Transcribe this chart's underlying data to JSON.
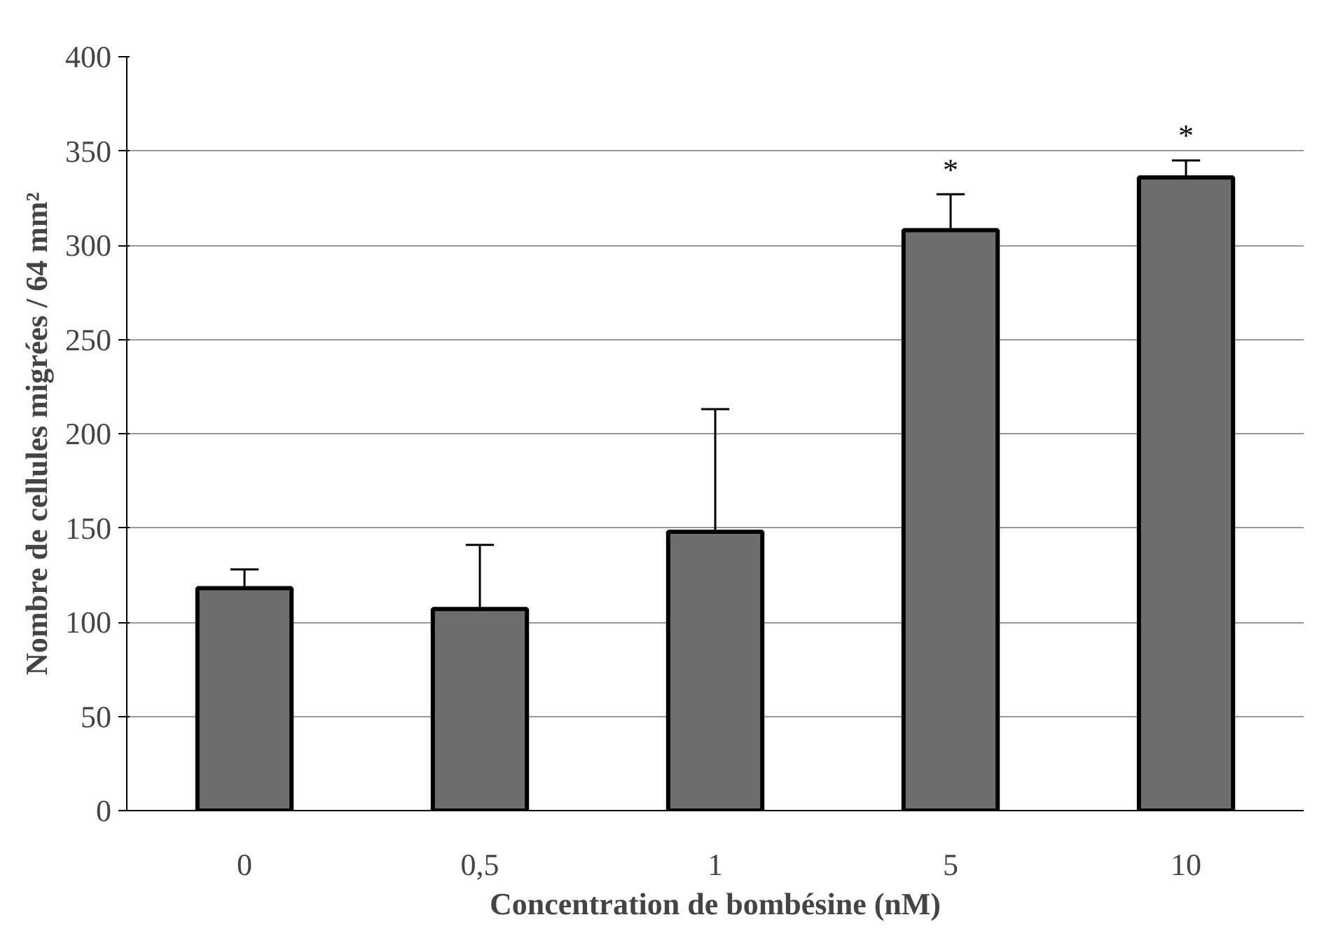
{
  "chart_data": {
    "type": "bar",
    "xlabel": "Concentration de bombésine (nM)",
    "ylabel": "Nombre de cellules migrées / 64 mm²",
    "categories": [
      "0",
      "0,5",
      "1",
      "5",
      "10"
    ],
    "values": [
      118,
      107,
      148,
      308,
      336
    ],
    "errors": [
      [
        118,
        128
      ],
      [
        107,
        141
      ],
      [
        148,
        213
      ],
      [
        308,
        327
      ],
      [
        336,
        345
      ]
    ],
    "color": "#6e6e6e",
    "ylim": [
      0,
      400
    ],
    "yticks": [
      0,
      50,
      100,
      150,
      200,
      250,
      300,
      350,
      400
    ],
    "grid": "y",
    "value_labels": [
      null,
      null,
      null,
      "*",
      "*"
    ]
  }
}
